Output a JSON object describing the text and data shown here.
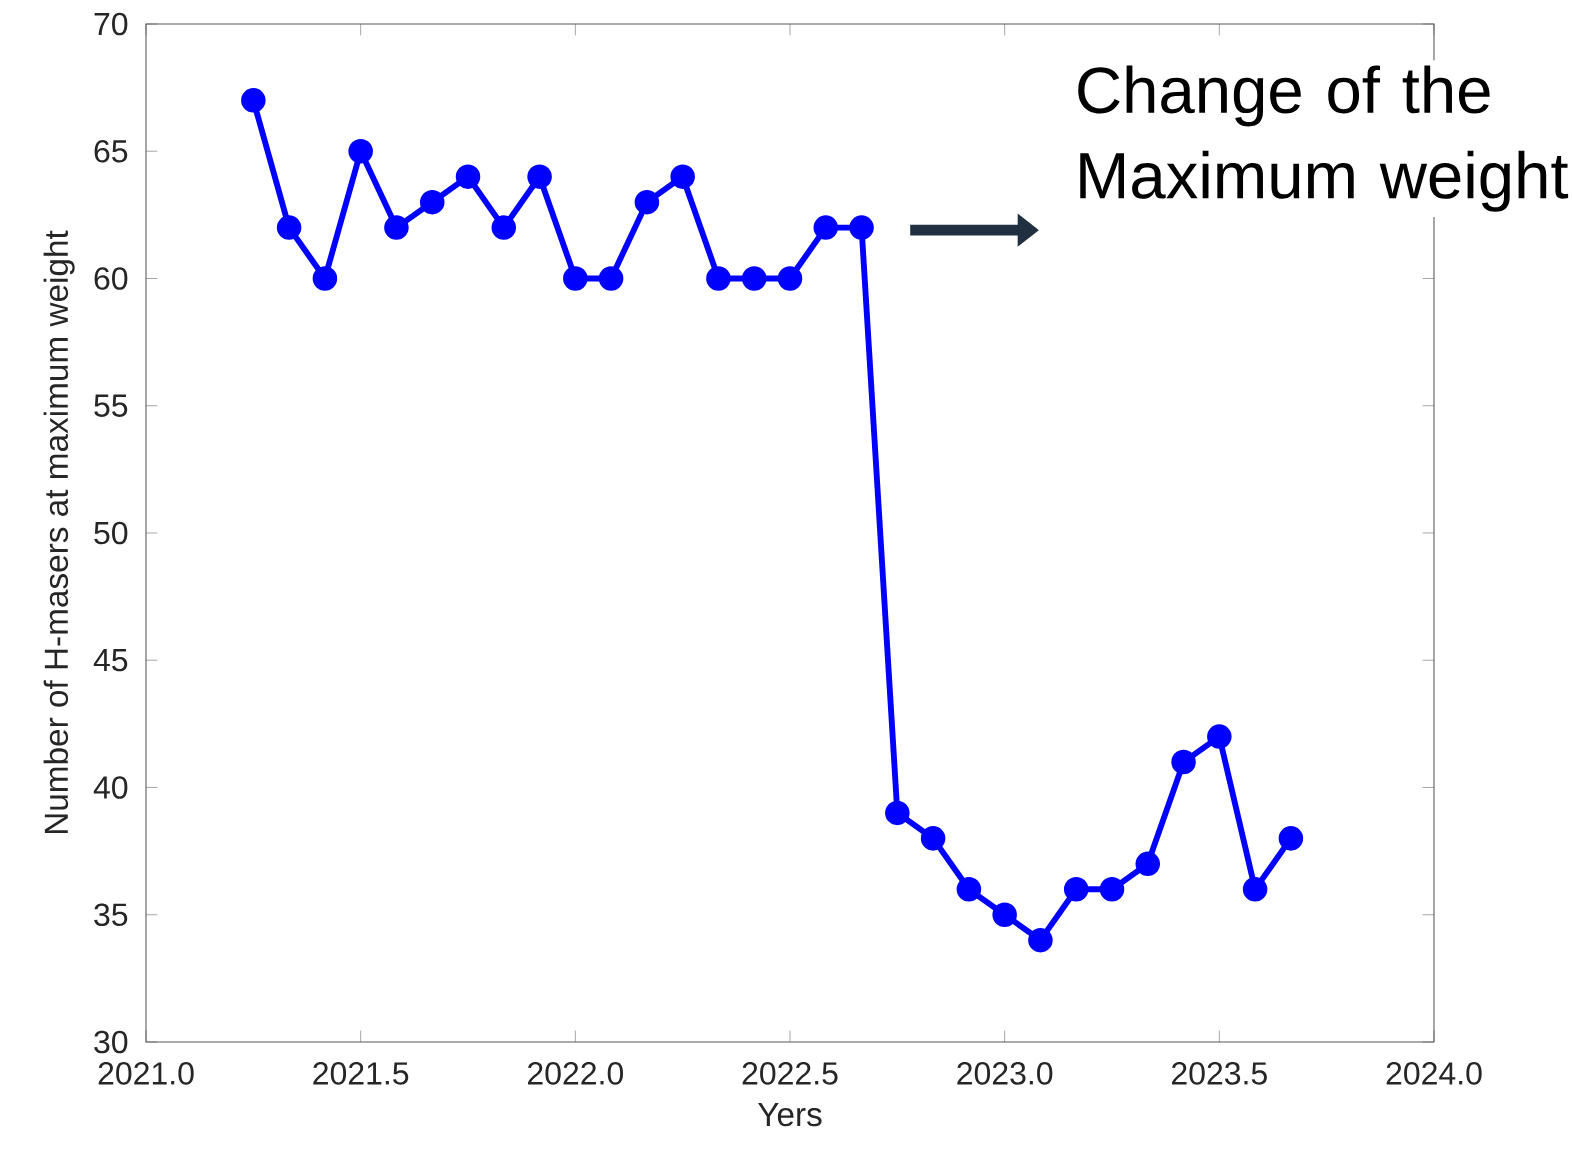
{
  "chart_data": {
    "type": "line",
    "xlabel": "Yers",
    "ylabel": "Number of H-masers at maximum weight",
    "x": [
      2021.25,
      2021.3333,
      2021.4167,
      2021.5,
      2021.5833,
      2021.6667,
      2021.75,
      2021.8333,
      2021.9167,
      2022.0,
      2022.0833,
      2022.1667,
      2022.25,
      2022.3333,
      2022.4167,
      2022.5,
      2022.5833,
      2022.6667,
      2022.75,
      2022.8333,
      2022.9167,
      2023.0,
      2023.0833,
      2023.1667,
      2023.25,
      2023.3333,
      2023.4167,
      2023.5,
      2023.5833,
      2023.6667
    ],
    "values": [
      67,
      62,
      60,
      65,
      62,
      63,
      64,
      62,
      64,
      60,
      60,
      63,
      64,
      60,
      60,
      60,
      62,
      62,
      39,
      38,
      36,
      35,
      34,
      36,
      36,
      37,
      41,
      42,
      36,
      38
    ],
    "color": "#0000ff",
    "marker": "circle",
    "line_style": "solid",
    "grid": false,
    "xlim": [
      2021,
      2024
    ],
    "ylim": [
      30,
      70
    ],
    "xticks": [
      {
        "value": 2021,
        "label": "2021.0"
      },
      {
        "value": 2021.5,
        "label": "2021.5"
      },
      {
        "value": 2022,
        "label": "2022.0"
      },
      {
        "value": 2022.5,
        "label": "2022.5"
      },
      {
        "value": 2023,
        "label": "2023.0"
      },
      {
        "value": 2023.5,
        "label": "2023.5"
      },
      {
        "value": 2024,
        "label": "2024.0"
      }
    ],
    "yticks": [
      30,
      35,
      40,
      45,
      50,
      55,
      60,
      65,
      70
    ],
    "annotations": [
      "Change of the Maximum weight"
    ]
  }
}
